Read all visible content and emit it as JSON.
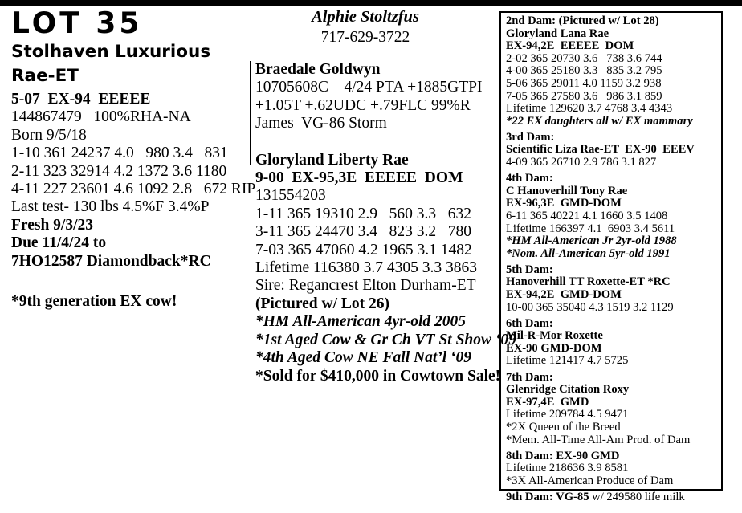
{
  "header": {
    "lot": "LOT 35",
    "name": "Stolhaven Luxurious Rae-ET"
  },
  "left": {
    "score_line": "5-07  EX-94  EEEEE",
    "reg_line": "144867479   100%RHA-NA",
    "born": "Born 9/5/18",
    "records": [
      "1-10 361 24237 4.0   980 3.4   831",
      "2-11 323 32914 4.2 1372 3.6 1180",
      "4-11 227 23601 4.6 1092 2.8   672 RIP"
    ],
    "last_test": "Last test- 130 lbs 4.5%F 3.4%P",
    "fresh": "Fresh 9/3/23",
    "due": "Due 11/4/24 to",
    "service_sire": "7HO12587 Diamondback*RC",
    "note": "*9th generation EX cow!"
  },
  "consignor": {
    "name": "Alphie Stoltzfus",
    "phone": "717-629-3722"
  },
  "sire": {
    "name": "Braedale Goldwyn",
    "reg_pta": "10705608C    4/24 PTA +1885GTPI",
    "linear": "+1.05T +.62UDC +.79FLC 99%R",
    "parents": "James  VG-86 Storm"
  },
  "dam": {
    "name": "Gloryland Liberty Rae",
    "score": "9-00  EX-95,3E  EEEEE  DOM",
    "reg": "131554203",
    "records": [
      "1-11 365 19310 2.9   560 3.3   632",
      "3-11 365 24470 3.4   823 3.2   780",
      "7-03 365 47060 4.2 1965 3.1 1482",
      "Lifetime 116380 3.7 4305 3.3 3863"
    ],
    "sire_line": "Sire: Regancrest Elton Durham-ET",
    "pictured": "(Pictured w/ Lot 26)",
    "honors": [
      "*HM All-American 4yr-old 2005",
      "*1st Aged Cow & Gr Ch VT St Show ‘09",
      "*4th Aged Cow NE Fall Nat’l ‘09"
    ],
    "sold": "*Sold for $410,000 in Cowtown Sale!"
  },
  "dam_box": {
    "lines": [
      "2nd Dam: (Pictured w/ Lot 28)",
      "Gloryland Lana Rae",
      "EX-94,2E  EEEEE  DOM",
      "2-02 365 20730 3.6   738 3.6 744",
      "4-00 365 25180 3.3   835 3.2 795",
      "5-06 365 29011 4.0 1159 3.2 938",
      "7-05 365 27580 3.6   986 3.1 859",
      "Lifetime 129620 3.7 4768 3.4 4343",
      "*22 EX daughters all w/ EX mammary",
      "3rd Dam:",
      "Scientific Liza Rae-ET  EX-90  EEEV",
      "4-09 365 26710 2.9 786 3.1 827",
      "4th Dam:",
      "C Hanoverhill Tony Rae",
      "EX-96,3E  GMD-DOM",
      "6-11 365 40221 4.1 1660 3.5 1408",
      "Lifetime 166397 4.1  6903 3.4 5611",
      "*HM All-American Jr 2yr-old 1988",
      "*Nom. All-American 5yr-old 1991",
      "5th Dam:",
      "Hanoverhill TT Roxette-ET *RC",
      "EX-94,2E  GMD-DOM",
      "10-00 365 35040 4.3 1519 3.2 1129",
      "6th Dam:",
      "Mil-R-Mor Roxette",
      "EX-90 GMD-DOM",
      "Lifetime 121417 4.7 5725",
      "7th Dam:",
      "Glenridge Citation Roxy",
      "EX-97,4E  GMD",
      "Lifetime 209784 4.5 9471",
      "*2X Queen of the Breed",
      "*Mem. All-Time All-Am Prod. of Dam",
      "8th Dam: EX-90 GMD",
      "Lifetime 218636 3.9 8581",
      "*3X All-American Produce of Dam"
    ],
    "dam9_bold": "9th Dam: VG-85",
    "dam9_rest": " w/ 249580 life milk"
  }
}
